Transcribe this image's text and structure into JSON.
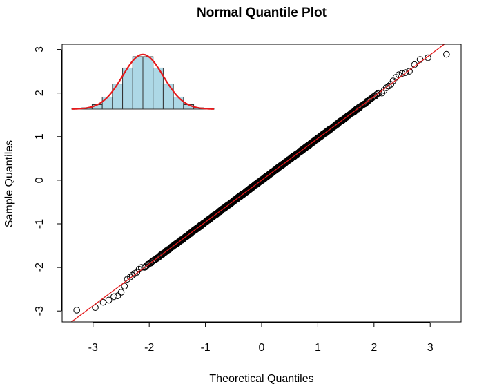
{
  "chart_data": {
    "type": "scatter",
    "title": "Normal Quantile Plot",
    "xlabel": "Theoretical Quantiles",
    "ylabel": "Sample Quantiles",
    "xlim": [
      -3.55,
      3.55
    ],
    "ylim": [
      -3.25,
      3.12
    ],
    "x_ticks": [
      -3,
      -2,
      -1,
      0,
      1,
      2,
      3
    ],
    "y_ticks": [
      -3,
      -2,
      -1,
      0,
      1,
      2,
      3
    ],
    "x_tick_labels": [
      "-3",
      "-2",
      "-1",
      "0",
      "1",
      "2",
      "3"
    ],
    "y_tick_labels": [
      "-3",
      "-2",
      "-1",
      "0",
      "1",
      "2",
      "3"
    ],
    "grid": false,
    "reference_line": {
      "intercept": 0.0,
      "slope": 0.96,
      "color": "#e41a1c"
    },
    "points_marker": {
      "shape": "open-circle",
      "color": "#000000"
    },
    "tail_points": [
      [
        -3.29,
        -2.98
      ],
      [
        -2.96,
        -2.92
      ],
      [
        -2.82,
        -2.8
      ],
      [
        -2.72,
        -2.75
      ],
      [
        -2.63,
        -2.67
      ],
      [
        -2.56,
        -2.65
      ],
      [
        -2.5,
        -2.57
      ],
      [
        -2.44,
        -2.43
      ],
      [
        -2.39,
        -2.27
      ],
      [
        -2.34,
        -2.22
      ],
      [
        -2.3,
        -2.18
      ],
      [
        -2.26,
        -2.14
      ],
      [
        -2.22,
        -2.11
      ],
      [
        -2.18,
        -2.04
      ],
      [
        -2.14,
        -2.0
      ],
      [
        2.14,
        2.0
      ],
      [
        2.18,
        2.06
      ],
      [
        2.22,
        2.12
      ],
      [
        2.26,
        2.16
      ],
      [
        2.3,
        2.2
      ],
      [
        2.34,
        2.28
      ],
      [
        2.39,
        2.36
      ],
      [
        2.44,
        2.42
      ],
      [
        2.5,
        2.45
      ],
      [
        2.56,
        2.47
      ],
      [
        2.63,
        2.5
      ],
      [
        2.72,
        2.65
      ],
      [
        2.82,
        2.77
      ],
      [
        2.96,
        2.81
      ],
      [
        3.29,
        2.89
      ]
    ],
    "inset_histogram": {
      "type": "bar",
      "bar_color": "#add8e6",
      "bin_edges": [
        -3.5,
        -3.0,
        -2.5,
        -2.0,
        -1.5,
        -1.0,
        -0.5,
        0.0,
        0.5,
        1.0,
        1.5,
        2.0,
        2.5,
        3.0,
        3.5
      ],
      "values": [
        0.0008,
        0.0046,
        0.0164,
        0.0441,
        0.0918,
        0.1499,
        0.1914,
        0.1914,
        0.1499,
        0.0918,
        0.0441,
        0.0164,
        0.0046,
        0.0008
      ],
      "density_curve": {
        "type": "normal",
        "mean": 0,
        "sd": 1,
        "color": "#e41a1c"
      }
    }
  }
}
